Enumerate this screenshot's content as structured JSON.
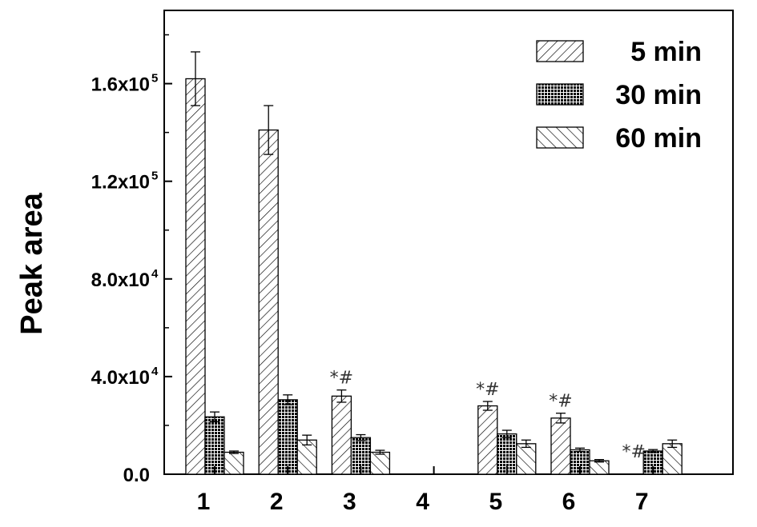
{
  "chart_data": {
    "type": "bar",
    "categories": [
      "1",
      "2",
      "3",
      "4",
      "5",
      "6",
      "7"
    ],
    "ylabel": "Peak area",
    "ylim": [
      0,
      190000
    ],
    "yticks": [
      {
        "value": 0,
        "mantissa": "0.0",
        "exp": ""
      },
      {
        "value": 40000,
        "mantissa": "4.0x10",
        "exp": "4"
      },
      {
        "value": 80000,
        "mantissa": "8.0x10",
        "exp": "4"
      },
      {
        "value": 120000,
        "mantissa": "1.2x10",
        "exp": "5"
      },
      {
        "value": 160000,
        "mantissa": "1.6x10",
        "exp": "5"
      }
    ],
    "legend_position": "top-right",
    "series": [
      {
        "name": "5 min",
        "pattern": "hatch-forward",
        "values": [
          162000,
          141000,
          32000,
          0,
          28000,
          23000,
          0
        ],
        "errors": [
          11000,
          10000,
          2500,
          0,
          1800,
          2000,
          0
        ]
      },
      {
        "name": "30 min",
        "pattern": "crosshatch",
        "values": [
          23500,
          30500,
          15000,
          0,
          16500,
          10000,
          9500
        ],
        "errors": [
          2000,
          2000,
          1200,
          0,
          1500,
          700,
          600
        ]
      },
      {
        "name": "60 min",
        "pattern": "hatch-backward",
        "values": [
          9000,
          14000,
          9000,
          0,
          12500,
          5500,
          12500
        ],
        "errors": [
          500,
          2000,
          800,
          0,
          1500,
          500,
          1500
        ]
      }
    ],
    "annotations": [
      {
        "category": "3",
        "text": "*#"
      },
      {
        "category": "5",
        "text": "*#"
      },
      {
        "category": "6",
        "text": "*#"
      },
      {
        "category": "7",
        "text": "*#"
      }
    ]
  }
}
